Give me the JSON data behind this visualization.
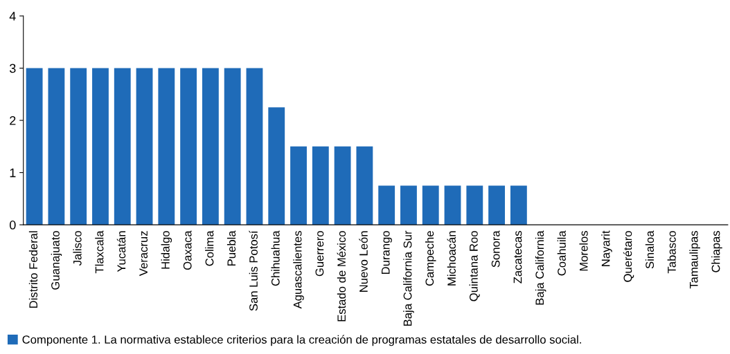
{
  "chart_data": {
    "type": "bar",
    "categories": [
      "Distrito Federal",
      "Guanajuato",
      "Jalisco",
      "Tlaxcala",
      "Yucatán",
      "Veracruz",
      "Hidalgo",
      "Oaxaca",
      "Colima",
      "Puebla",
      "San Luis Potosí",
      "Chihuahua",
      "Aguascalientes",
      "Guerrero",
      "Estado de México",
      "Nuevo León",
      "Durango",
      "Baja California Sur",
      "Campeche",
      "Michoacán",
      "Quintana Roo",
      "Sonora",
      "Zacatecas",
      "Baja California",
      "Coahuila",
      "Morelos",
      "Nayarit",
      "Querétaro",
      "Sinaloa",
      "Tabasco",
      "Tamaulipas",
      "Chiapas"
    ],
    "series": [
      {
        "name": "Componente 1. La normativa establece criterios para la creación de programas estatales de desarrollo social.",
        "color": "#1f6bb8",
        "values": [
          3,
          3,
          3,
          3,
          3,
          3,
          3,
          3,
          3,
          3,
          3,
          2.25,
          1.5,
          1.5,
          1.5,
          1.5,
          0.75,
          0.75,
          0.75,
          0.75,
          0.75,
          0.75,
          0.75,
          0,
          0,
          0,
          0,
          0,
          0,
          0,
          0,
          0
        ]
      }
    ],
    "ylim": [
      0,
      4
    ],
    "yticks": [
      0,
      1,
      2,
      3,
      4
    ],
    "grid": false,
    "legend": "bottom left"
  }
}
